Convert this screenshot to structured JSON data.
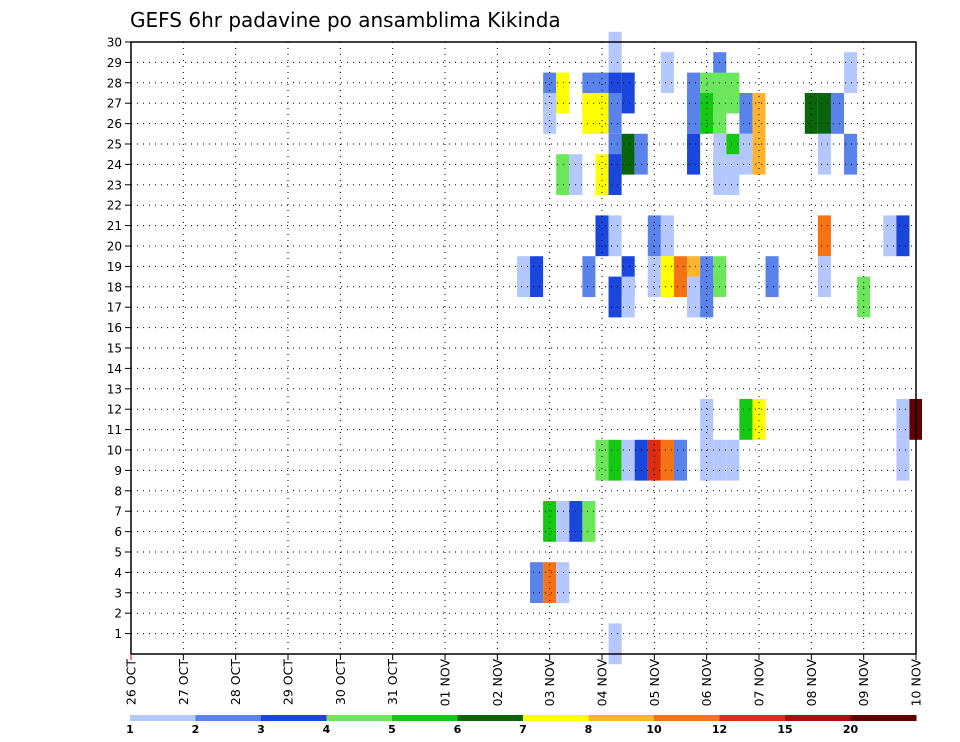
{
  "chart_data": {
    "type": "heatmap",
    "title": "GEFS 6hr padavine po ansamblima Kikinda",
    "xlabel": "",
    "ylabel": "",
    "x_ticks": [
      "26 OCT",
      "27 OCT",
      "28 OCT",
      "29 OCT",
      "30 OCT",
      "31 OCT",
      "01 NOV",
      "02 NOV",
      "03 NOV",
      "04 NOV",
      "05 NOV",
      "06 NOV",
      "07 NOV",
      "08 NOV",
      "09 NOV",
      "10 NOV"
    ],
    "x_range": [
      0,
      60
    ],
    "y_ticks": [
      "1",
      "2",
      "3",
      "4",
      "5",
      "6",
      "7",
      "8",
      "9",
      "10",
      "11",
      "12",
      "13",
      "14",
      "15",
      "16",
      "17",
      "18",
      "19",
      "20",
      "21",
      "22",
      "23",
      "24",
      "25",
      "26",
      "27",
      "28",
      "29",
      "30"
    ],
    "y_range": [
      0,
      30
    ],
    "grid": true,
    "colorbar": {
      "labels": [
        "1",
        "2",
        "3",
        "4",
        "5",
        "6",
        "7",
        "8",
        "10",
        "12",
        "15",
        "20"
      ],
      "colors": [
        "#b4c8ff",
        "#5a82eb",
        "#1a46dc",
        "#6ce65a",
        "#14c814",
        "#0a640a",
        "#ffff00",
        "#ffb42d",
        "#f57314",
        "#dc2d0f",
        "#aa0f0f",
        "#640000"
      ]
    },
    "cells": [
      {
        "x": 37,
        "y": 29,
        "v": 1
      },
      {
        "x": 41,
        "y": 28,
        "v": 1
      },
      {
        "x": 45,
        "y": 28,
        "v": 2
      },
      {
        "x": 55,
        "y": 28,
        "v": 1
      },
      {
        "x": 32,
        "y": 27,
        "v": 2
      },
      {
        "x": 33,
        "y": 27,
        "v": 7
      },
      {
        "x": 35,
        "y": 27,
        "v": 2
      },
      {
        "x": 36,
        "y": 27,
        "v": 2
      },
      {
        "x": 37,
        "y": 27,
        "v": 3
      },
      {
        "x": 38,
        "y": 27,
        "v": 3
      },
      {
        "x": 43,
        "y": 27,
        "v": 2
      },
      {
        "x": 44,
        "y": 27,
        "v": 4
      },
      {
        "x": 45,
        "y": 27,
        "v": 4
      },
      {
        "x": 46,
        "y": 27,
        "v": 4
      },
      {
        "x": 32,
        "y": 26,
        "v": 1
      },
      {
        "x": 35,
        "y": 26,
        "v": 7
      },
      {
        "x": 36,
        "y": 26,
        "v": 7
      },
      {
        "x": 37,
        "y": 26,
        "v": 2
      },
      {
        "x": 43,
        "y": 26,
        "v": 2
      },
      {
        "x": 44,
        "y": 26,
        "v": 5
      },
      {
        "x": 45,
        "y": 26,
        "v": 4
      },
      {
        "x": 47,
        "y": 26,
        "v": 2
      },
      {
        "x": 48,
        "y": 26,
        "v": 8
      },
      {
        "x": 52,
        "y": 26,
        "v": 6
      },
      {
        "x": 53,
        "y": 26,
        "v": 6
      },
      {
        "x": 54,
        "y": 26,
        "v": 2
      },
      {
        "x": 37,
        "y": 24,
        "v": 2
      },
      {
        "x": 38,
        "y": 24,
        "v": 6
      },
      {
        "x": 39,
        "y": 24,
        "v": 2
      },
      {
        "x": 43,
        "y": 24,
        "v": 3
      },
      {
        "x": 45,
        "y": 24,
        "v": 1
      },
      {
        "x": 46,
        "y": 24,
        "v": 5
      },
      {
        "x": 47,
        "y": 24,
        "v": 1
      },
      {
        "x": 48,
        "y": 24,
        "v": 8
      },
      {
        "x": 53,
        "y": 24,
        "v": 1
      },
      {
        "x": 55,
        "y": 24,
        "v": 2
      },
      {
        "x": 33,
        "y": 23,
        "v": 4
      },
      {
        "x": 34,
        "y": 23,
        "v": 1
      },
      {
        "x": 36,
        "y": 23,
        "v": 7
      },
      {
        "x": 37,
        "y": 23,
        "v": 3
      },
      {
        "x": 45,
        "y": 23,
        "v": 1
      },
      {
        "x": 46,
        "y": 23,
        "v": 1
      },
      {
        "x": 36,
        "y": 20,
        "v": 3
      },
      {
        "x": 37,
        "y": 20,
        "v": 1
      },
      {
        "x": 40,
        "y": 20,
        "v": 2
      },
      {
        "x": 41,
        "y": 20,
        "v": 1
      },
      {
        "x": 53,
        "y": 20,
        "v": 10
      },
      {
        "x": 58,
        "y": 20,
        "v": 1
      },
      {
        "x": 59,
        "y": 20,
        "v": 3
      },
      {
        "x": 30,
        "y": 18,
        "v": 1
      },
      {
        "x": 31,
        "y": 18,
        "v": 3
      },
      {
        "x": 35,
        "y": 18,
        "v": 2
      },
      {
        "x": 38,
        "y": 18,
        "v": 3
      },
      {
        "x": 40,
        "y": 18,
        "v": 1
      },
      {
        "x": 41,
        "y": 18,
        "v": 7
      },
      {
        "x": 42,
        "y": 18,
        "v": 10
      },
      {
        "x": 43,
        "y": 18,
        "v": 8
      },
      {
        "x": 44,
        "y": 18,
        "v": 2
      },
      {
        "x": 45,
        "y": 18,
        "v": 4
      },
      {
        "x": 49,
        "y": 18,
        "v": 2
      },
      {
        "x": 53,
        "y": 18,
        "v": 1
      },
      {
        "x": 37,
        "y": 17,
        "v": 3
      },
      {
        "x": 38,
        "y": 17,
        "v": 1
      },
      {
        "x": 43,
        "y": 17,
        "v": 1
      },
      {
        "x": 44,
        "y": 17,
        "v": 2
      },
      {
        "x": 56,
        "y": 17,
        "v": 4
      },
      {
        "x": 44,
        "y": 11,
        "v": 1
      },
      {
        "x": 47,
        "y": 11,
        "v": 5
      },
      {
        "x": 48,
        "y": 11,
        "v": 7
      },
      {
        "x": 59,
        "y": 11,
        "v": 1
      },
      {
        "x": 60,
        "y": 11,
        "v": 20
      },
      {
        "x": 36,
        "y": 9,
        "v": 4
      },
      {
        "x": 37,
        "y": 9,
        "v": 5
      },
      {
        "x": 38,
        "y": 9,
        "v": 1
      },
      {
        "x": 39,
        "y": 9,
        "v": 3
      },
      {
        "x": 40,
        "y": 9,
        "v": 12
      },
      {
        "x": 41,
        "y": 9,
        "v": 10
      },
      {
        "x": 42,
        "y": 9,
        "v": 2
      },
      {
        "x": 44,
        "y": 9,
        "v": 1
      },
      {
        "x": 45,
        "y": 9,
        "v": 1
      },
      {
        "x": 46,
        "y": 9,
        "v": 1
      },
      {
        "x": 59,
        "y": 9,
        "v": 1
      },
      {
        "x": 32,
        "y": 6,
        "v": 5
      },
      {
        "x": 33,
        "y": 6,
        "v": 1
      },
      {
        "x": 34,
        "y": 6,
        "v": 3
      },
      {
        "x": 35,
        "y": 6,
        "v": 4
      },
      {
        "x": 31,
        "y": 3,
        "v": 2
      },
      {
        "x": 32,
        "y": 3,
        "v": 10
      },
      {
        "x": 33,
        "y": 3,
        "v": 1
      },
      {
        "x": 37,
        "y": 0,
        "v": 1
      }
    ]
  }
}
